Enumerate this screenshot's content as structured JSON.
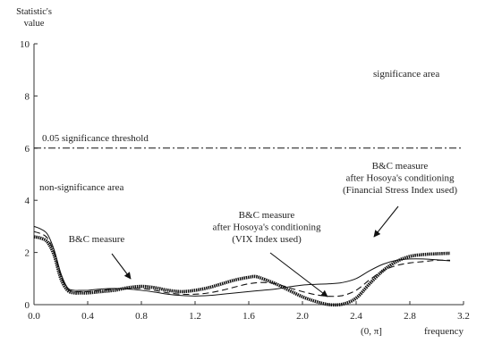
{
  "chart_data": {
    "type": "line",
    "y_axis_title_line1": "Statistic's",
    "y_axis_title_line2": "value",
    "x_axis_domain_label": "(0, π]",
    "x_axis_title": "frequency",
    "xlim": [
      0,
      3.2
    ],
    "ylim": [
      0,
      10
    ],
    "x_ticks": [
      0.0,
      0.4,
      0.8,
      1.2,
      1.6,
      2.0,
      2.4,
      2.8,
      3.2
    ],
    "x_tick_labels": [
      "0.0",
      "0.4",
      "0.8",
      "1.2",
      "1.6",
      "2.0",
      "2.4",
      "2.8",
      "3.2"
    ],
    "y_ticks": [
      0,
      2,
      4,
      6,
      8,
      10
    ],
    "y_tick_labels": [
      "0",
      "2",
      "4",
      "6",
      "8",
      "10"
    ],
    "grid": false,
    "threshold": {
      "value": 6,
      "label": "0.05 significance threshold",
      "style": "dash-dot"
    },
    "region_labels": {
      "upper": "significance area",
      "lower": "non-significance area"
    },
    "series": [
      {
        "name": "B&C measure",
        "style": "thick-dotted",
        "x": [
          0.0,
          0.05,
          0.1,
          0.15,
          0.2,
          0.25,
          0.3,
          0.35,
          0.4,
          0.5,
          0.6,
          0.7,
          0.8,
          0.9,
          1.0,
          1.1,
          1.2,
          1.3,
          1.4,
          1.5,
          1.6,
          1.65,
          1.7,
          1.8,
          1.9,
          2.0,
          2.1,
          2.2,
          2.3,
          2.4,
          2.5,
          2.6,
          2.7,
          2.8,
          2.9,
          3.0,
          3.1
        ],
        "y": [
          2.6,
          2.55,
          2.4,
          1.9,
          1.0,
          0.55,
          0.45,
          0.45,
          0.45,
          0.5,
          0.55,
          0.65,
          0.7,
          0.65,
          0.55,
          0.5,
          0.55,
          0.65,
          0.8,
          0.95,
          1.05,
          1.08,
          1.0,
          0.8,
          0.55,
          0.3,
          0.12,
          0.0,
          0.02,
          0.25,
          0.8,
          1.3,
          1.65,
          1.85,
          1.92,
          1.95,
          1.97
        ]
      },
      {
        "name": "B&C measure after Hosoya's conditioning (VIX Index used)",
        "style": "dashed",
        "x": [
          0.0,
          0.05,
          0.1,
          0.15,
          0.2,
          0.25,
          0.3,
          0.35,
          0.4,
          0.5,
          0.6,
          0.7,
          0.8,
          0.9,
          1.0,
          1.1,
          1.2,
          1.3,
          1.4,
          1.5,
          1.6,
          1.7,
          1.8,
          1.9,
          2.0,
          2.1,
          2.2,
          2.3,
          2.4,
          2.5,
          2.6,
          2.7,
          2.8,
          2.9,
          3.0,
          3.1
        ],
        "y": [
          2.8,
          2.72,
          2.55,
          2.0,
          1.1,
          0.6,
          0.5,
          0.5,
          0.5,
          0.55,
          0.6,
          0.62,
          0.62,
          0.55,
          0.45,
          0.4,
          0.4,
          0.45,
          0.55,
          0.68,
          0.8,
          0.85,
          0.8,
          0.65,
          0.5,
          0.38,
          0.32,
          0.35,
          0.55,
          0.95,
          1.3,
          1.5,
          1.6,
          1.65,
          1.7,
          1.7
        ]
      },
      {
        "name": "B&C measure after Hosoya's conditioning (Financial Stress Index used)",
        "style": "solid-thin",
        "x": [
          0.0,
          0.05,
          0.1,
          0.15,
          0.2,
          0.25,
          0.3,
          0.35,
          0.4,
          0.5,
          0.6,
          0.7,
          0.8,
          0.9,
          1.0,
          1.1,
          1.2,
          1.3,
          1.4,
          1.5,
          1.6,
          1.7,
          1.8,
          1.9,
          2.0,
          2.1,
          2.2,
          2.3,
          2.4,
          2.5,
          2.6,
          2.7,
          2.8,
          2.9,
          3.0,
          3.1
        ],
        "y": [
          3.0,
          2.9,
          2.7,
          2.1,
          1.2,
          0.65,
          0.55,
          0.55,
          0.55,
          0.6,
          0.62,
          0.6,
          0.55,
          0.48,
          0.4,
          0.35,
          0.33,
          0.35,
          0.4,
          0.45,
          0.5,
          0.55,
          0.6,
          0.68,
          0.75,
          0.78,
          0.8,
          0.85,
          1.0,
          1.3,
          1.55,
          1.7,
          1.75,
          1.75,
          1.72,
          1.68
        ]
      }
    ],
    "annotations": [
      {
        "lines": [
          "B&C measure"
        ]
      },
      {
        "lines": [
          "B&C measure",
          "after Hosoya's conditioning",
          "(VIX Index used)"
        ]
      },
      {
        "lines": [
          "B&C measure",
          "after Hosoya's conditioning",
          "(Financial Stress Index used)"
        ]
      }
    ]
  }
}
